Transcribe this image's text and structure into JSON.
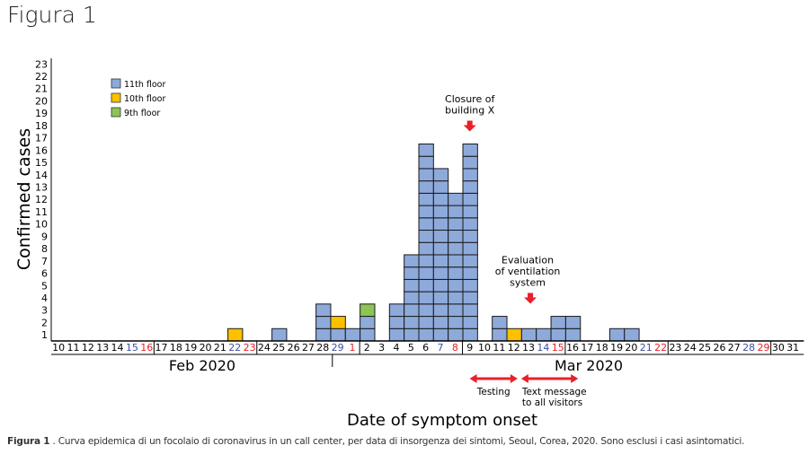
{
  "title": "Figura 1",
  "caption": {
    "label": "Figura 1",
    "text": " . Curva epidemica di un focolaio di coronavirus in un call center, per data di insorgenza dei sintomi, Seoul, Corea, 2020. Sono esclusi i casi asintomatici."
  },
  "colors": {
    "11th floor": "#8eaadb",
    "10th floor": "#ffc000",
    "9th floor": "#8dc454",
    "saturday": "#3f4fa0",
    "sunday": "#e8202a",
    "arrow": "#e8202a"
  },
  "chart_data": {
    "type": "bar",
    "stacked": true,
    "xlabel": "Date of symptom onset",
    "ylabel": "Confirmed cases",
    "ylim": [
      0,
      23
    ],
    "yticks": [
      1,
      2,
      3,
      4,
      5,
      6,
      7,
      8,
      9,
      10,
      11,
      12,
      13,
      14,
      15,
      16,
      17,
      18,
      19,
      20,
      21,
      22,
      23
    ],
    "months": [
      {
        "label": "Feb 2020",
        "days": [
          10,
          11,
          12,
          13,
          14,
          15,
          16,
          17,
          18,
          19,
          20,
          21,
          22,
          23,
          24,
          25,
          26,
          27,
          28,
          29
        ]
      },
      {
        "label": "Mar 2020",
        "days": [
          1,
          2,
          3,
          4,
          5,
          6,
          7,
          8,
          9,
          10,
          11,
          12,
          13,
          14,
          15,
          16,
          17,
          18,
          19,
          20,
          21,
          22,
          23,
          24,
          25,
          26,
          27,
          28,
          29,
          30,
          31
        ]
      }
    ],
    "saturdays": [
      "Feb 15",
      "Feb 22",
      "Feb 29",
      "Mar 7",
      "Mar 14",
      "Mar 21",
      "Mar 28"
    ],
    "sundays": [
      "Feb 16",
      "Feb 23",
      "Mar 1",
      "Mar 8",
      "Mar 15",
      "Mar 22",
      "Mar 29"
    ],
    "legend": [
      "11th floor",
      "10th floor",
      "9th floor"
    ],
    "legend_position": "top-left",
    "series": [
      {
        "name": "11th floor",
        "values": {
          "Feb 25": 1,
          "Feb 28": 3,
          "Feb 29": 1,
          "Mar 1": 1,
          "Mar 2": 2,
          "Mar 4": 3,
          "Mar 5": 7,
          "Mar 6": 16,
          "Mar 7": 14,
          "Mar 8": 12,
          "Mar 9": 16,
          "Mar 11": 2,
          "Mar 13": 1,
          "Mar 14": 1,
          "Mar 15": 2,
          "Mar 16": 2,
          "Mar 19": 1,
          "Mar 20": 1
        }
      },
      {
        "name": "10th floor",
        "values": {
          "Feb 22": 1,
          "Feb 29": 1,
          "Mar 12": 1
        }
      },
      {
        "name": "9th floor",
        "values": {
          "Mar 2": 1
        }
      }
    ],
    "annotations": [
      {
        "text": [
          "Closure of",
          "building X"
        ],
        "date": "Mar 9",
        "kind": "down-arrow"
      },
      {
        "text": [
          "Evaluation",
          "of ventilation",
          "system"
        ],
        "date": "Mar 13",
        "kind": "down-arrow"
      },
      {
        "text": [
          "Testing"
        ],
        "from": "Mar 9",
        "to": "Mar 12",
        "kind": "range-arrow"
      },
      {
        "text": [
          "Text message",
          "to all visitors"
        ],
        "from": "Mar 13",
        "to": "Mar 16",
        "kind": "range-arrow"
      }
    ]
  }
}
